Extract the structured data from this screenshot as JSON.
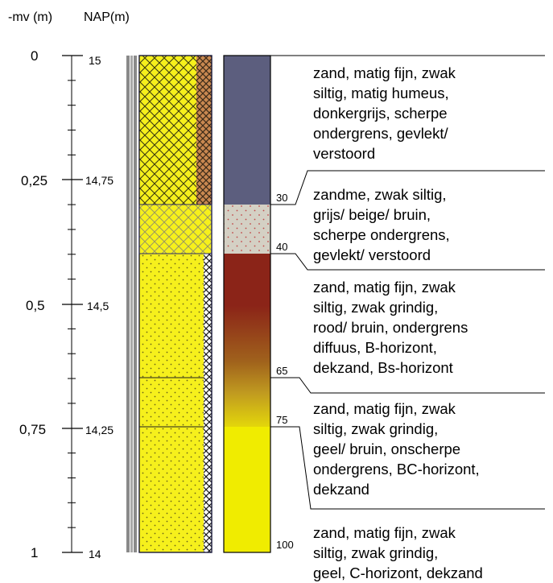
{
  "headers": {
    "mv": "-mv (m)",
    "nap": "NAP(m)"
  },
  "mv_labels": [
    "0",
    "0,25",
    "0,5",
    "0,75",
    "1"
  ],
  "nap_labels": [
    "15",
    "14,75",
    "14,5",
    "14,25",
    "14"
  ],
  "depth_labels": [
    "30",
    "40",
    "65",
    "75",
    "100"
  ],
  "descriptions": [
    {
      "lines": [
        "zand, matig fijn, zwak",
        "siltig, matig humeus,",
        "donkergrijs, scherpe",
        "ondergrens, gevlekt/",
        "verstoord"
      ]
    },
    {
      "lines": [
        "zandme, zwak siltig,",
        "grijs/ beige/ bruin,",
        "scherpe ondergrens,",
        "gevlekt/ verstoord"
      ]
    },
    {
      "lines": [
        "zand, matig fijn, zwak",
        "siltig, zwak grindig,",
        "rood/ bruin, ondergrens",
        "diffuus, B-horizont,",
        "dekzand, Bs-horizont"
      ]
    },
    {
      "lines": [
        "zand, matig fijn, zwak",
        "siltig, zwak grindig,",
        "geel/ bruin, onscherpe",
        "ondergrens, BC-horizont,",
        "dekzand"
      ]
    },
    {
      "lines": [
        "zand, matig fijn, zwak",
        "siltig, zwak grindig,",
        "geel, C-horizont, dekzand"
      ]
    }
  ],
  "colors": {
    "layer1": "#5c5e7e",
    "layer2": "#d4d0c4",
    "layer3_top": "#8b2418",
    "layer4": "#f0ec00",
    "sand_yellow": "#f4ee2a",
    "organic_brown": "#c8834a"
  }
}
